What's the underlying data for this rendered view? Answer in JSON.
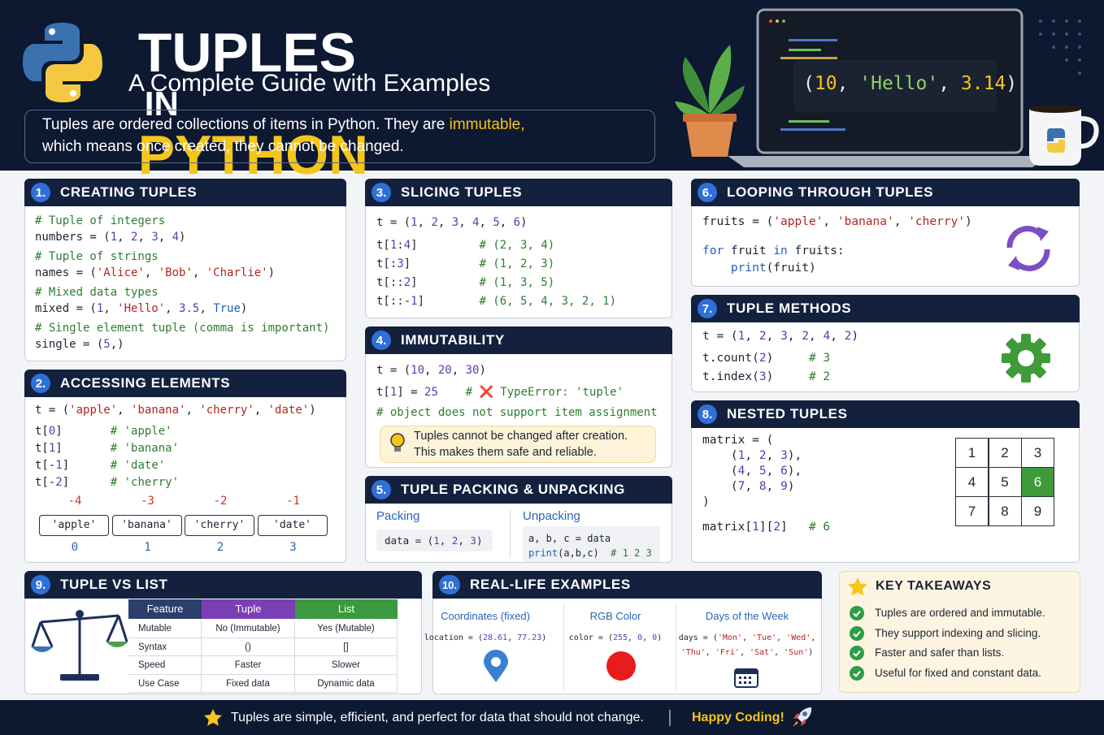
{
  "header": {
    "title_main": "TUPLES",
    "title_in": "IN",
    "title_python": "PYTHON",
    "subtitle": "A Complete Guide with Examples",
    "intro": [
      "Tuples are ordered collections of items in Python. They are",
      "immutable,",
      "which means once created, they cannot be changed."
    ],
    "laptop_code": "(10, 'Hello', 3.14)"
  },
  "creating": {
    "number": "1.",
    "title": "CREATING TUPLES",
    "code": [
      [
        "# Tuple of integers",
        "numbers = (1, 2, 3, 4)"
      ],
      [
        "# Tuple of strings",
        "names = ('Alice', 'Bob', 'Charlie')"
      ],
      [
        "# Mixed data types",
        "mixed = (1, 'Hello', 3.5, True)"
      ],
      [
        "# Single element tuple (comma is important)",
        "single = (5,)"
      ]
    ]
  },
  "accessing": {
    "number": "2.",
    "title": "ACCESSING ELEMENTS",
    "code": [
      [
        "t = ('apple', 'banana', 'cherry', 'date')"
      ],
      [
        "t[0]       # 'apple'",
        "t[1]       # 'banana'",
        "t[-1]      # 'date'",
        "t[-2]      # 'cherry'"
      ]
    ],
    "negative_indices": [
      -4,
      -3,
      -2,
      -1
    ],
    "items": [
      "'apple'",
      "'banana'",
      "'cherry'",
      "'date'"
    ],
    "positive_indices": [
      0,
      1,
      2,
      3
    ]
  },
  "slicing": {
    "number": "3.",
    "title": "SLICING TUPLES",
    "code": [
      [
        "t = (1, 2, 3, 4, 5, 6)"
      ],
      [
        "t[1:4]         # (2, 3, 4)",
        "t[:3]          # (1, 2, 3)",
        "t[::2]         # (1, 3, 5)",
        "t[::-1]        # (6, 5, 4, 3, 2, 1)"
      ]
    ]
  },
  "immutability": {
    "number": "4.",
    "title": "IMMUTABILITY",
    "code": [
      [
        "t = (10, 20, 30)"
      ],
      [
        "t[1] = 25    # ❌ TypeError: 'tuple'",
        "# object does not support item assignment"
      ]
    ],
    "note": [
      "Tuples cannot be changed after creation.",
      "This makes them safe and reliable."
    ]
  },
  "packing": {
    "number": "5.",
    "title": "TUPLE PACKING & UNPACKING",
    "packing_label": "Packing",
    "packing_code": [
      [
        "data = (1, 2, 3)"
      ]
    ],
    "unpacking_label": "Unpacking",
    "unpacking_code": [
      [
        "a, b, c = data",
        "print(a,b,c)  # 1 2 3"
      ]
    ]
  },
  "looping": {
    "number": "6.",
    "title": "LOOPING THROUGH TUPLES",
    "code": [
      [
        "fruits = ('apple', 'banana', 'cherry')"
      ],
      [
        "for fruit in fruits:",
        "    print(fruit)"
      ]
    ]
  },
  "methods": {
    "number": "7.",
    "title": "TUPLE METHODS",
    "code": [
      [
        "t = (1, 2, 3, 2, 4, 2)"
      ],
      [
        "t.count(2)     # 3",
        "t.index(3)     # 2"
      ]
    ]
  },
  "nested": {
    "number": "8.",
    "title": "NESTED TUPLES",
    "code": [
      [
        "matrix = (",
        "    (1, 2, 3),",
        "    (4, 5, 6),",
        "    (7, 8, 9)",
        ")"
      ],
      [
        "matrix[1][2]   # 6"
      ]
    ],
    "grid": [
      [
        1,
        2,
        3
      ],
      [
        4,
        5,
        6
      ],
      [
        7,
        8,
        9
      ]
    ]
  },
  "versus": {
    "number": "9.",
    "title": "TUPLE VS LIST",
    "table": {
      "headers": [
        "Feature",
        "Tuple",
        "List"
      ],
      "rows": [
        [
          "Mutable",
          "No (Immutable)",
          "Yes (Mutable)"
        ],
        [
          "Syntax",
          "()",
          "[]"
        ],
        [
          "Speed",
          "Faster",
          "Slower"
        ],
        [
          "Use Case",
          "Fixed data",
          "Dynamic data"
        ]
      ]
    }
  },
  "examples": {
    "number": "10.",
    "title": "REAL-LIFE EXAMPLES",
    "items": [
      {
        "title": "Coordinates (fixed)",
        "code": [
          [
            "location = (28.61, 77.23)"
          ]
        ]
      },
      {
        "title": "RGB Color",
        "code": [
          [
            "color = (255, 0, 0)"
          ]
        ]
      },
      {
        "title": "Days of the Week",
        "code": [
          [
            "days = ('Mon', 'Tue', 'Wed',",
            "'Thu', 'Fri', 'Sat', 'Sun')"
          ]
        ]
      }
    ]
  },
  "takeaways": {
    "title": "KEY TAKEAWAYS",
    "items": [
      "Tuples are ordered and immutable.",
      "They support indexing and slicing.",
      "Faster and safer than lists.",
      "Useful for fixed and constant data."
    ]
  },
  "footer": {
    "text": "Tuples are simple, efficient, and perfect for data that should not change.",
    "happy": "Happy Coding!"
  }
}
